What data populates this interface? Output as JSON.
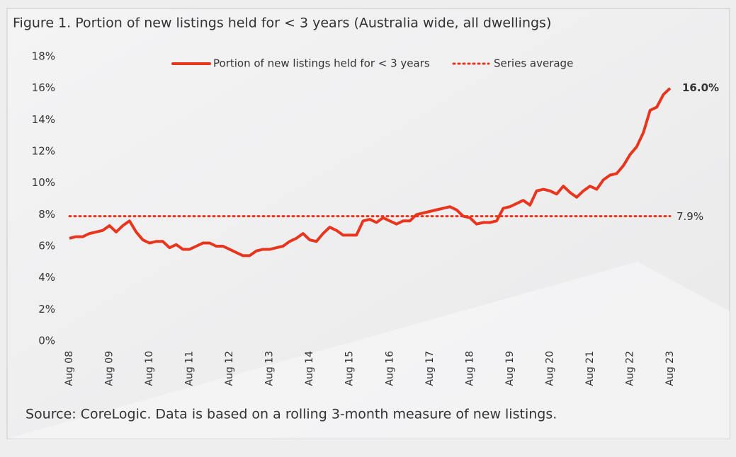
{
  "chart_data": {
    "type": "line",
    "title": "Figure 1. Portion of new listings held for < 3 years (Australia wide, all dwellings)",
    "source": "Source: CoreLogic. Data is based on a rolling 3-month measure of new listings.",
    "categories": [
      "Aug 08",
      null,
      null,
      null,
      null,
      null,
      "Aug 09",
      null,
      null,
      null,
      null,
      null,
      "Aug 10",
      null,
      null,
      null,
      null,
      null,
      "Aug 11",
      null,
      null,
      null,
      null,
      null,
      "Aug 12",
      null,
      null,
      null,
      null,
      null,
      "Aug 13",
      null,
      null,
      null,
      null,
      null,
      "Aug 14",
      null,
      null,
      null,
      null,
      null,
      "Aug 15",
      null,
      null,
      null,
      null,
      null,
      "Aug 16",
      null,
      null,
      null,
      null,
      null,
      "Aug 17",
      null,
      null,
      null,
      null,
      null,
      "Aug 18",
      null,
      null,
      null,
      null,
      null,
      "Aug 19",
      null,
      null,
      null,
      null,
      null,
      "Aug 20",
      null,
      null,
      null,
      null,
      null,
      "Aug 21",
      null,
      null,
      null,
      null,
      null,
      "Aug 22",
      null,
      null,
      null,
      null,
      null,
      "Aug 23"
    ],
    "series": [
      {
        "name": "Portion of new listings held for < 3 years",
        "color": "#e8361e",
        "values": [
          6.5,
          6.6,
          6.6,
          6.8,
          6.9,
          7.0,
          7.3,
          6.9,
          7.3,
          7.6,
          6.9,
          6.4,
          6.2,
          6.3,
          6.3,
          5.9,
          6.1,
          5.8,
          5.8,
          6.0,
          6.2,
          6.2,
          6.0,
          6.0,
          5.8,
          5.6,
          5.4,
          5.4,
          5.7,
          5.8,
          5.8,
          5.9,
          6.0,
          6.3,
          6.5,
          6.8,
          6.4,
          6.3,
          6.8,
          7.2,
          7.0,
          6.7,
          6.7,
          6.7,
          7.6,
          7.7,
          7.5,
          7.8,
          7.6,
          7.4,
          7.6,
          7.6,
          8.0,
          8.1,
          8.2,
          8.3,
          8.4,
          8.5,
          8.3,
          7.9,
          7.8,
          7.4,
          7.5,
          7.5,
          7.6,
          8.4,
          8.5,
          8.7,
          8.9,
          8.6,
          9.5,
          9.6,
          9.5,
          9.3,
          9.8,
          9.4,
          9.1,
          9.5,
          9.8,
          9.6,
          10.2,
          10.5,
          10.6,
          11.1,
          11.8,
          12.3,
          13.2,
          14.6,
          14.8,
          15.6,
          16.0
        ]
      }
    ],
    "end_label": {
      "value": 16.0,
      "label": "16.0%"
    },
    "average": {
      "name": "Series average",
      "value": 7.9,
      "label": "7.9%",
      "color": "#e8361e"
    },
    "ylim": [
      0,
      18
    ],
    "yticks": [
      {
        "value": 0,
        "label": "0%"
      },
      {
        "value": 2,
        "label": "2%"
      },
      {
        "value": 4,
        "label": "4%"
      },
      {
        "value": 6,
        "label": "6%"
      },
      {
        "value": 8,
        "label": "8%"
      },
      {
        "value": 10,
        "label": "10%"
      },
      {
        "value": 12,
        "label": "12%"
      },
      {
        "value": 14,
        "label": "14%"
      },
      {
        "value": 16,
        "label": "16%"
      },
      {
        "value": 18,
        "label": "18%"
      }
    ],
    "grid": false
  }
}
